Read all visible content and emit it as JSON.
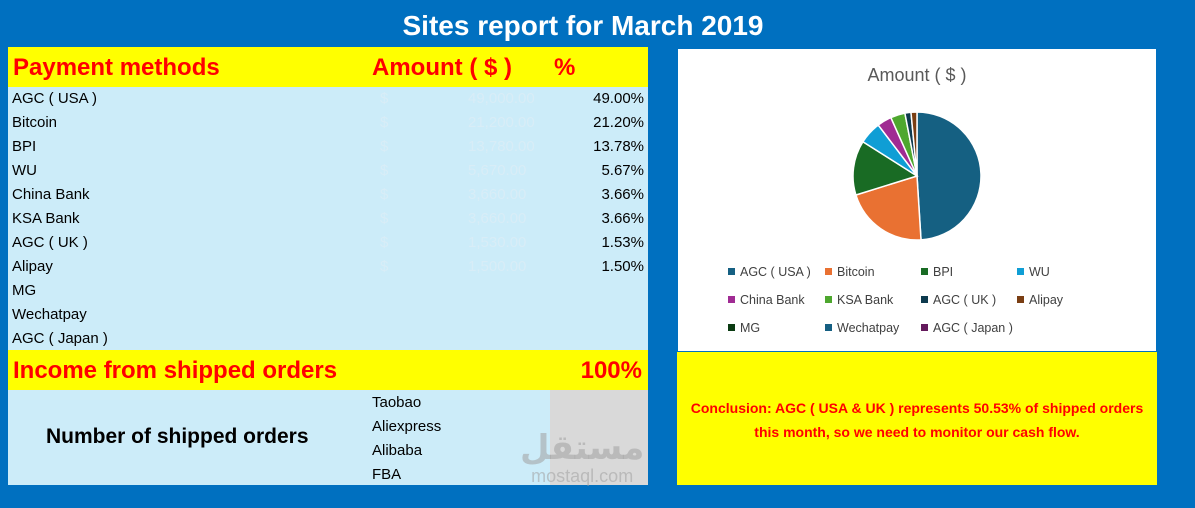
{
  "report": {
    "title": "Sites report for March 2019"
  },
  "table": {
    "header": {
      "payment_methods": "Payment methods",
      "amount": "Amount ( $ )",
      "percent": "%"
    },
    "rows": [
      {
        "name": "AGC ( USA )",
        "currency": "$",
        "amount": "49,000.00",
        "percent": "49.00%"
      },
      {
        "name": "Bitcoin",
        "currency": "$",
        "amount": "21,200.00",
        "percent": "21.20%"
      },
      {
        "name": "BPI",
        "currency": "$",
        "amount": "13,780.00",
        "percent": "13.78%"
      },
      {
        "name": "WU",
        "currency": "$",
        "amount": "5,670.00",
        "percent": "5.67%"
      },
      {
        "name": "China Bank",
        "currency": "$",
        "amount": "3,660.00",
        "percent": "3.66%"
      },
      {
        "name": "KSA Bank",
        "currency": "$",
        "amount": "3,660.00",
        "percent": "3.66%"
      },
      {
        "name": "AGC ( UK )",
        "currency": "$",
        "amount": "1,530.00",
        "percent": "1.53%"
      },
      {
        "name": "Alipay",
        "currency": "$",
        "amount": "1,500.00",
        "percent": "1.50%"
      },
      {
        "name": "MG",
        "currency": "",
        "amount": "",
        "percent": ""
      },
      {
        "name": "Wechatpay",
        "currency": "",
        "amount": "",
        "percent": ""
      },
      {
        "name": "AGC ( Japan )",
        "currency": "",
        "amount": "",
        "percent": ""
      }
    ],
    "income": {
      "label": "Income from shipped orders",
      "value": "100%"
    }
  },
  "shipped_orders": {
    "label": "Number of shipped orders",
    "items": [
      "Taobao",
      "Aliexpress",
      "Alibaba",
      "FBA"
    ]
  },
  "chart_data": {
    "type": "pie",
    "title": "Amount ( $ )",
    "categories": [
      "AGC ( USA )",
      "Bitcoin",
      "BPI",
      "WU",
      "China Bank",
      "KSA Bank",
      "AGC ( UK )",
      "Alipay",
      "MG",
      "Wechatpay",
      "AGC ( Japan )"
    ],
    "values": [
      49.0,
      21.2,
      13.78,
      5.67,
      3.66,
      3.66,
      1.53,
      1.5,
      0,
      0,
      0
    ],
    "colors": [
      "#156082",
      "#e97132",
      "#196b24",
      "#0f9ed5",
      "#a02b93",
      "#4ea72e",
      "#0d3a4e",
      "#7a3e13",
      "#0a3b12",
      "#155f82",
      "#641a5c"
    ],
    "legend_position": "bottom"
  },
  "conclusion": {
    "text": "Conclusion: AGC ( USA & UK ) represents 50.53% of shipped orders this month, so we need to monitor our cash flow."
  },
  "watermark": {
    "arabic": "مستقل",
    "latin": "mostaql.com"
  }
}
